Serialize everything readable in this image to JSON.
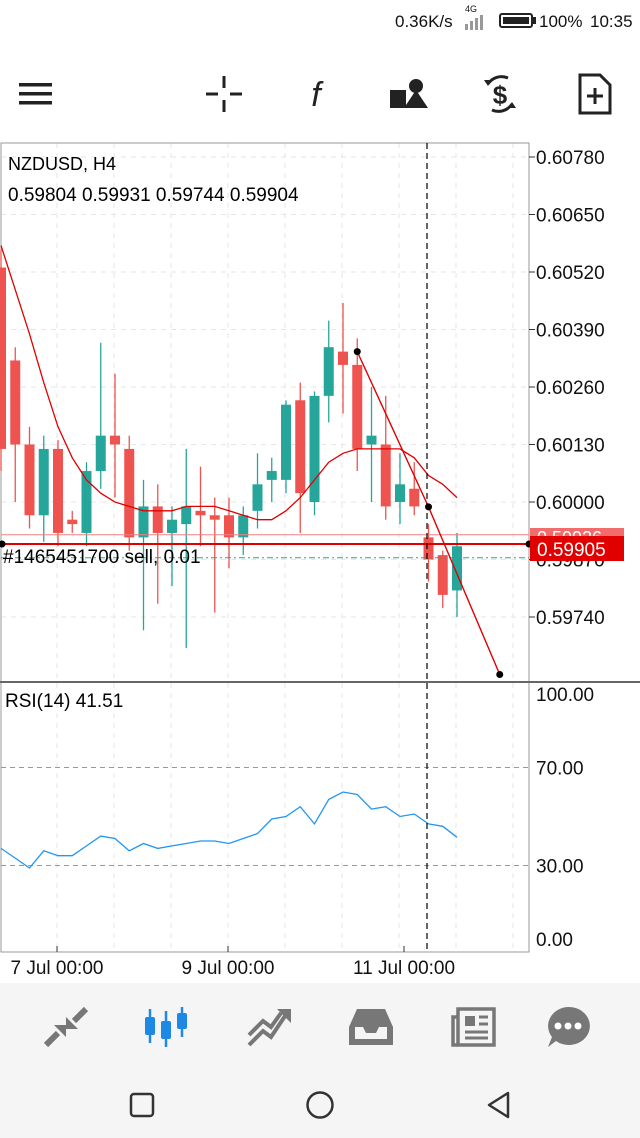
{
  "status_bar": {
    "network_speed": "0.36K/s",
    "network_type": "4G",
    "battery": "100%",
    "time": "10:35"
  },
  "toolbar": {
    "icons": [
      "menu-icon",
      "crosshair-icon",
      "function-icon",
      "objects-icon",
      "trade-dollar-icon",
      "new-document-icon"
    ]
  },
  "chart": {
    "symbol": "NZDUSD, H4",
    "ohlc": "0.59804 0.59931 0.59744 0.59904",
    "price_axis": [
      "0.60780",
      "0.60650",
      "0.60520",
      "0.60390",
      "0.60260",
      "0.60130",
      "0.60000",
      "0.59870",
      "0.59740"
    ],
    "order_label": "#1465451700 sell, 0.01",
    "ask_price_partial": "0.59926",
    "bid_price": "0.59905",
    "indicator_label": "RSI(14) 41.51",
    "rsi_axis": [
      "100.00",
      "70.00",
      "30.00",
      "0.00"
    ],
    "time_axis": [
      "7 Jul 00:00",
      "9 Jul 00:00",
      "11 Jul 00:00"
    ],
    "colors": {
      "bull": "#26a69a",
      "bear": "#ef5350",
      "ma": "#e00000",
      "rsi": "#2196f3",
      "price_tag": "#e00000"
    }
  },
  "chart_data": {
    "type": "candlestick",
    "symbol": "NZDUSD",
    "timeframe": "H4",
    "candles": [
      {
        "o": 0.6053,
        "h": 0.6057,
        "l": 0.6007,
        "c": 0.6012
      },
      {
        "o": 0.6032,
        "h": 0.6035,
        "l": 0.6,
        "c": 0.6013
      },
      {
        "o": 0.6013,
        "h": 0.6017,
        "l": 0.5994,
        "c": 0.5997
      },
      {
        "o": 0.5997,
        "h": 0.6015,
        "l": 0.5991,
        "c": 0.6012
      },
      {
        "o": 0.6012,
        "h": 0.6014,
        "l": 0.599,
        "c": 0.5993
      },
      {
        "o": 0.5996,
        "h": 0.5998,
        "l": 0.5993,
        "c": 0.5995
      },
      {
        "o": 0.5993,
        "h": 0.6009,
        "l": 0.599,
        "c": 0.6007
      },
      {
        "o": 0.6007,
        "h": 0.6036,
        "l": 0.6003,
        "c": 0.6015
      },
      {
        "o": 0.6015,
        "h": 0.6029,
        "l": 0.6001,
        "c": 0.6013
      },
      {
        "o": 0.6012,
        "h": 0.6015,
        "l": 0.5989,
        "c": 0.5992
      },
      {
        "o": 0.5992,
        "h": 0.6005,
        "l": 0.5971,
        "c": 0.5999
      },
      {
        "o": 0.5999,
        "h": 0.6004,
        "l": 0.5977,
        "c": 0.5993
      },
      {
        "o": 0.5993,
        "h": 0.5999,
        "l": 0.5981,
        "c": 0.5996
      },
      {
        "o": 0.5995,
        "h": 0.6012,
        "l": 0.5967,
        "c": 0.5999
      },
      {
        "o": 0.5998,
        "h": 0.6008,
        "l": 0.599,
        "c": 0.5997
      },
      {
        "o": 0.5997,
        "h": 0.6001,
        "l": 0.5975,
        "c": 0.5996
      },
      {
        "o": 0.5997,
        "h": 0.6001,
        "l": 0.5985,
        "c": 0.5992
      },
      {
        "o": 0.5992,
        "h": 0.5999,
        "l": 0.5988,
        "c": 0.5997
      },
      {
        "o": 0.5998,
        "h": 0.6011,
        "l": 0.5994,
        "c": 0.6004
      },
      {
        "o": 0.6005,
        "h": 0.601,
        "l": 0.6,
        "c": 0.6007
      },
      {
        "o": 0.6005,
        "h": 0.6023,
        "l": 0.6002,
        "c": 0.6022
      },
      {
        "o": 0.6023,
        "h": 0.6027,
        "l": 0.5993,
        "c": 0.6002
      },
      {
        "o": 0.6,
        "h": 0.6025,
        "l": 0.5997,
        "c": 0.6024
      },
      {
        "o": 0.6024,
        "h": 0.6041,
        "l": 0.6018,
        "c": 0.6035
      },
      {
        "o": 0.6034,
        "h": 0.6045,
        "l": 0.602,
        "c": 0.6031
      },
      {
        "o": 0.6031,
        "h": 0.6037,
        "l": 0.6007,
        "c": 0.6012
      },
      {
        "o": 0.6013,
        "h": 0.6026,
        "l": 0.6,
        "c": 0.6015
      },
      {
        "o": 0.6013,
        "h": 0.6024,
        "l": 0.5996,
        "c": 0.5999
      },
      {
        "o": 0.6,
        "h": 0.6011,
        "l": 0.5995,
        "c": 0.6004
      },
      {
        "o": 0.6003,
        "h": 0.6009,
        "l": 0.5997,
        "c": 0.5999
      },
      {
        "o": 0.5992,
        "h": 0.5995,
        "l": 0.5982,
        "c": 0.5987
      },
      {
        "o": 0.5988,
        "h": 0.5989,
        "l": 0.5976,
        "c": 0.5979
      },
      {
        "o": 0.598,
        "h": 0.5993,
        "l": 0.5974,
        "c": 0.599
      }
    ],
    "ma_values": [
      0.6058,
      0.6048,
      0.6038,
      0.6027,
      0.6017,
      0.601,
      0.6005,
      0.6002,
      0.6,
      0.5999,
      0.5998,
      0.5998,
      0.5998,
      0.5999,
      0.5999,
      0.5999,
      0.5998,
      0.5997,
      0.5996,
      0.5996,
      0.5998,
      0.6001,
      0.6005,
      0.6009,
      0.6011,
      0.6012,
      0.6012,
      0.6012,
      0.6012,
      0.601,
      0.6006,
      0.6004,
      0.6001
    ],
    "trend_line": {
      "from": {
        "index": 25,
        "price": 0.6034
      },
      "mid": {
        "index": 30,
        "price": 0.59989
      },
      "to": {
        "index": 35,
        "price": 0.5961
      }
    },
    "order_level": 0.59905,
    "ask_level": 0.59926,
    "stop_level": 0.59874,
    "rsi": [
      37,
      33,
      29,
      36,
      34,
      34,
      38,
      42,
      41,
      36,
      39,
      37,
      38,
      39,
      40,
      40,
      39,
      41,
      43,
      49,
      50,
      54,
      47,
      57,
      60,
      59,
      53,
      54,
      50,
      51,
      47,
      46,
      41.51
    ],
    "rsi_levels": [
      70,
      30
    ],
    "ylim": [
      0.5969,
      0.608
    ],
    "rsi_ylim": [
      0,
      100
    ],
    "grid": true
  },
  "bottom_nav": {
    "items": [
      "quotes-icon",
      "chart-icon",
      "trade-icon",
      "history-icon",
      "news-icon",
      "messages-icon"
    ],
    "active_index": 1
  }
}
